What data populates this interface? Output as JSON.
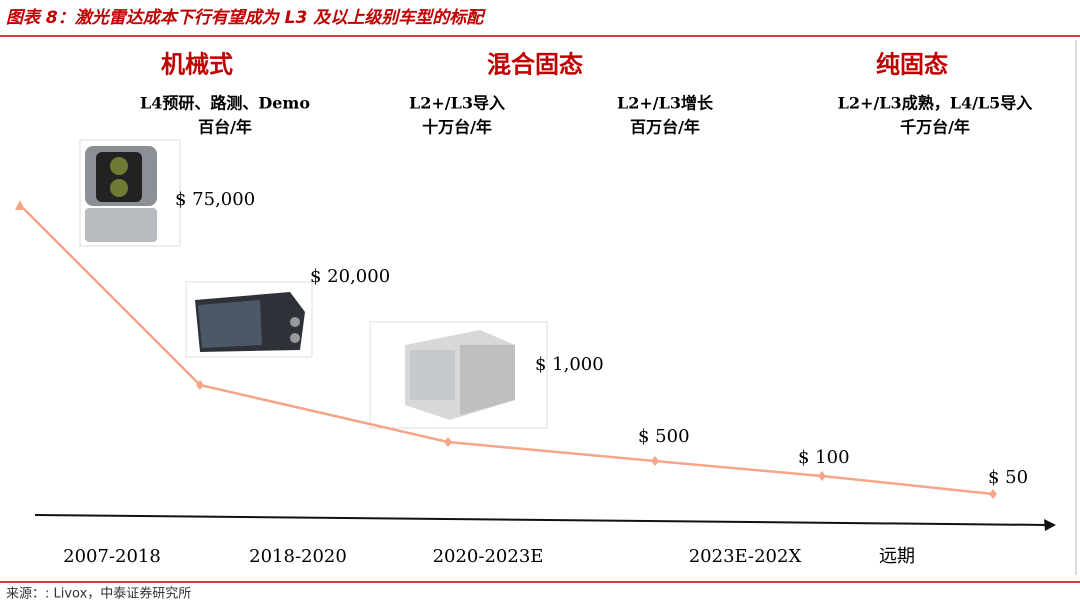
{
  "header": {
    "title": "图表 8：激光雷达成本下行有望成为 L3 及以上级别车型的标配"
  },
  "stages": [
    "机械式",
    "混合固态",
    "纯固态"
  ],
  "descriptions": [
    [
      "L4预研、路测、Demo",
      "百台/年"
    ],
    [
      "L2+/L3导入",
      "十万台/年"
    ],
    [
      "L2+/L3增长",
      "百万台/年"
    ],
    [
      "L2+/L3成熟，L4/L5导入",
      "千万台/年"
    ]
  ],
  "prices": [
    "$ 75,000",
    "$ 20,000",
    "$ 1,000",
    "$ 500",
    "$ 100",
    "$ 50"
  ],
  "periods": [
    "2007-2018",
    "2018-2020",
    "2020-2023E",
    "2023E-202X",
    "远期"
  ],
  "footer": {
    "source": "来源：: Livox，中泰证券研究所"
  }
}
